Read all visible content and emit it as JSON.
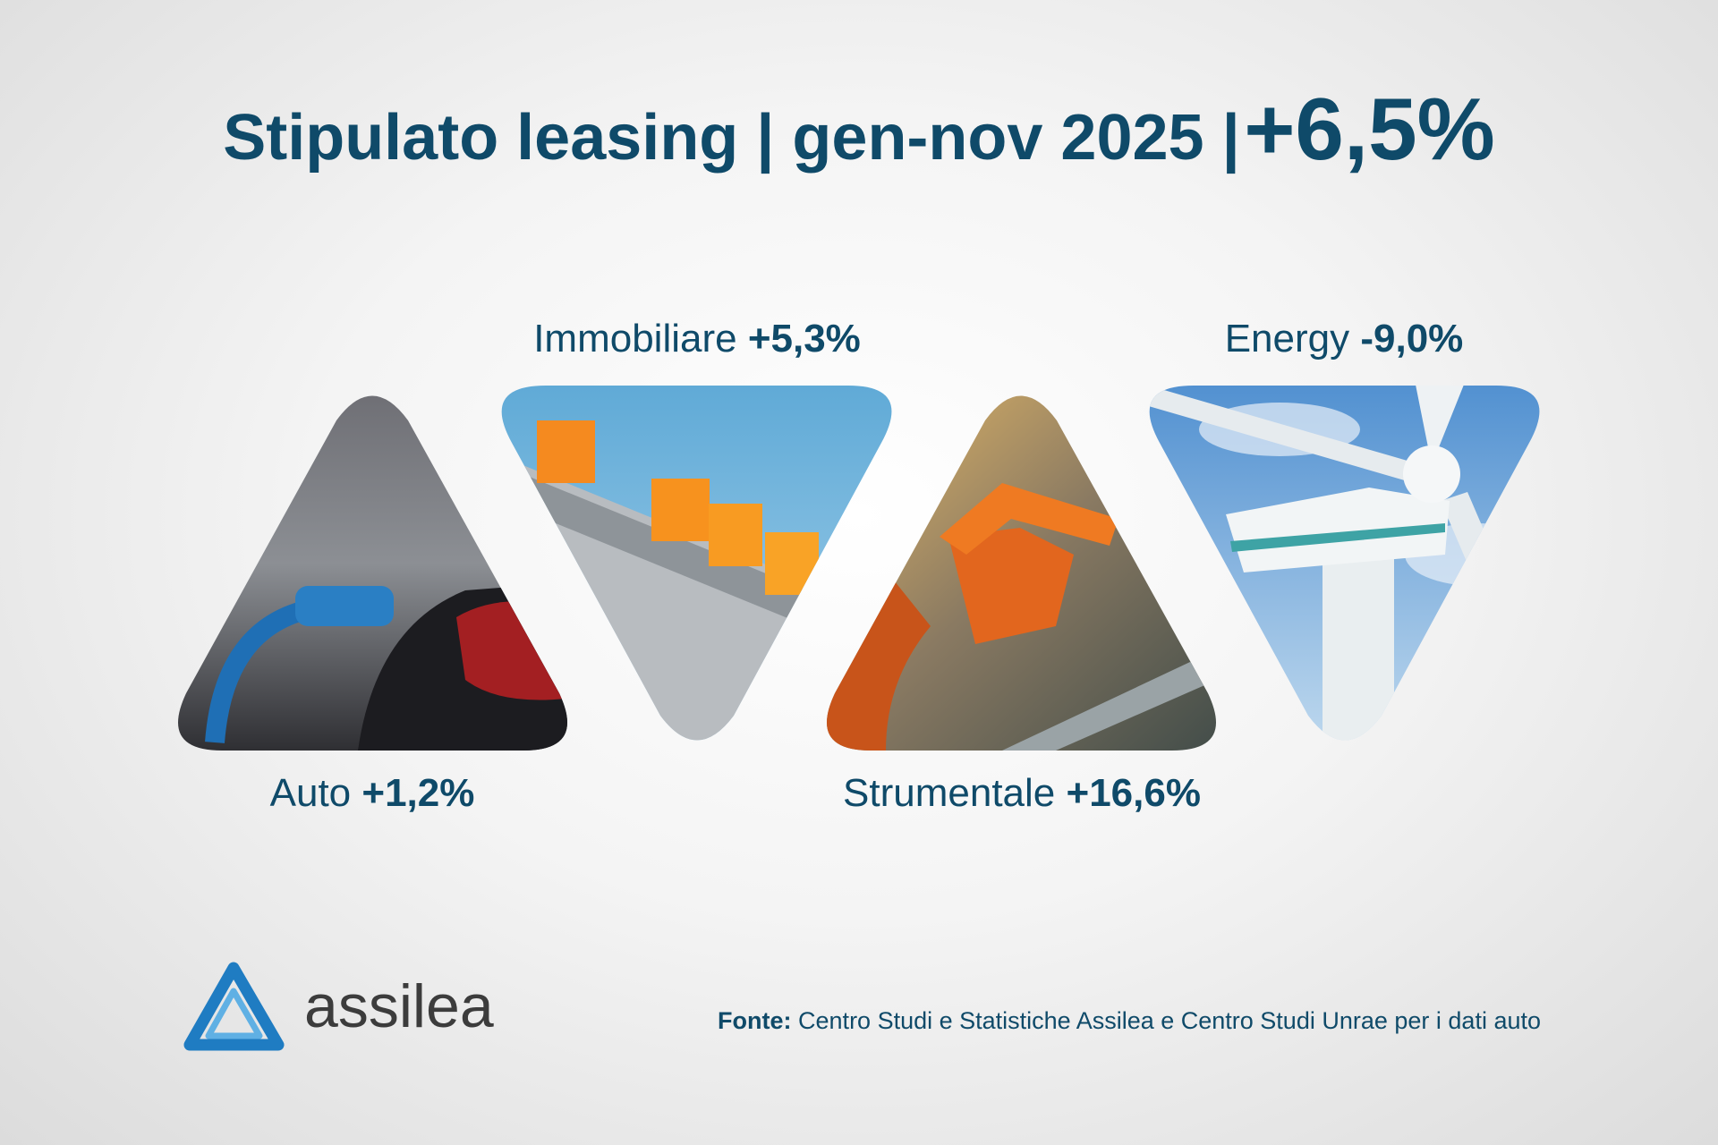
{
  "header": {
    "title": "Stipulato leasing | gen-nov 2025 |",
    "total_change": "+6,5%"
  },
  "segments": [
    {
      "name": "Auto",
      "change": "+1,2%"
    },
    {
      "name": "Immobiliare",
      "change": "+5,3%"
    },
    {
      "name": "Strumentale",
      "change": "+16,6%"
    },
    {
      "name": "Energy",
      "change": "-9,0%"
    }
  ],
  "logo": "assilea",
  "source": {
    "label": "Fonte:",
    "text": "Centro Studi e Statistiche Assilea e Centro Studi Unrae per i dati auto"
  }
}
